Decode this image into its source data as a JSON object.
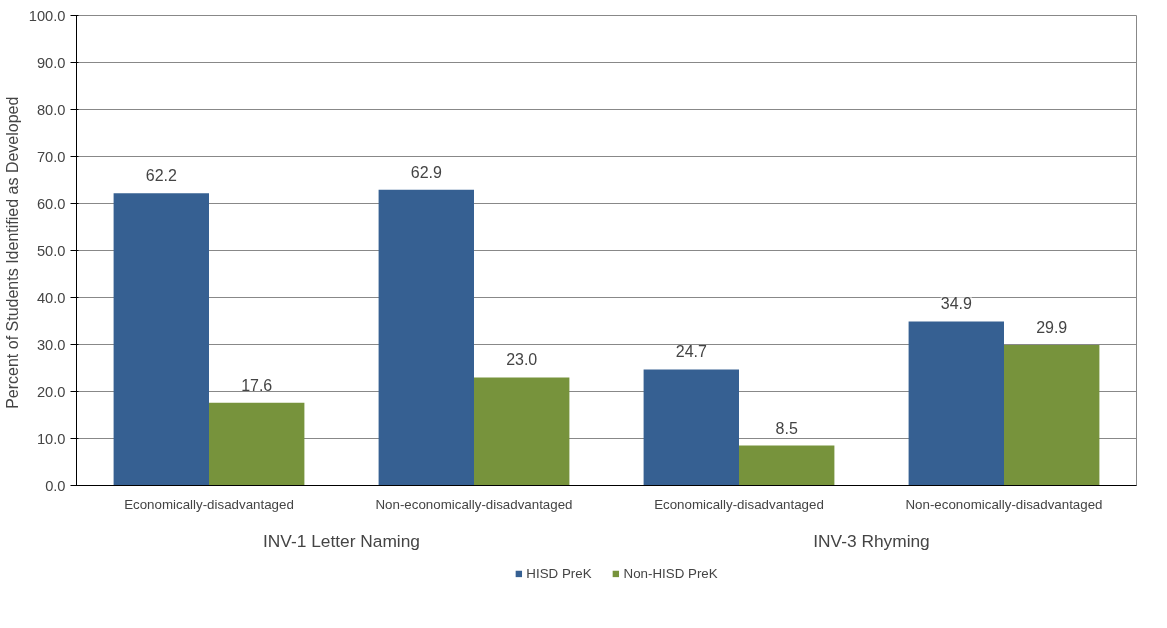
{
  "chart_data": {
    "type": "bar",
    "ylabel": "Percent of Students Identified as  Developed",
    "categories": [
      "Economically-disadvantaged",
      "Non-economically-disadvantaged",
      "Economically-disadvantaged",
      "Non-economically-disadvantaged"
    ],
    "series": [
      {
        "name": "HISD PreK",
        "color": "#366092",
        "values": [
          62.2,
          62.9,
          24.7,
          34.9
        ],
        "value_labels": [
          "62.2",
          "62.9",
          "24.7",
          "34.9"
        ]
      },
      {
        "name": "Non-HISD PreK",
        "color": "#77933c",
        "values": [
          17.6,
          23.0,
          8.5,
          29.9
        ],
        "value_labels": [
          "17.6",
          "23.0",
          "8.5",
          "29.9"
        ]
      }
    ],
    "annotations": [
      "INV-1 Letter Naming",
      "INV-3 Rhyming"
    ],
    "ylim": [
      0,
      100
    ],
    "yticks": [
      {
        "value": 0,
        "label": "0.0"
      },
      {
        "value": 10,
        "label": "10.0"
      },
      {
        "value": 20,
        "label": "20.0"
      },
      {
        "value": 30,
        "label": "30.0"
      },
      {
        "value": 40,
        "label": "40.0"
      },
      {
        "value": 50,
        "label": "50.0"
      },
      {
        "value": 60,
        "label": "60.0"
      },
      {
        "value": 70,
        "label": "70.0"
      },
      {
        "value": 80,
        "label": "80.0"
      },
      {
        "value": 90,
        "label": "90.0"
      },
      {
        "value": 100,
        "label": "100.0"
      }
    ],
    "grid": "y",
    "legend": "bottom"
  }
}
